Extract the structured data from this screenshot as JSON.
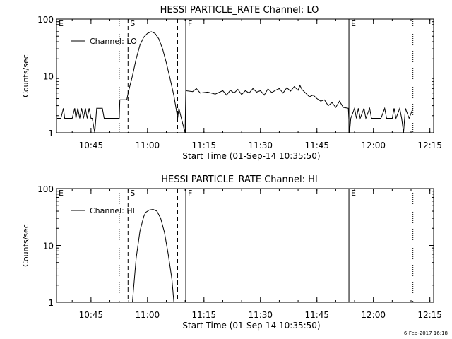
{
  "footer_timestamp": "6-Feb-2017 16:18",
  "chart_data": [
    {
      "type": "line",
      "title": "HESSI PARTICLE_RATE Channel: LO",
      "xlabel": "Start Time (01-Sep-14 10:35:50)",
      "ylabel": "Counts/sec",
      "y_scale": "log",
      "ylim": [
        1,
        100
      ],
      "y_ticks": [
        {
          "value": 1,
          "label": "1"
        },
        {
          "value": 10,
          "label": "10"
        },
        {
          "value": 100,
          "label": "100"
        }
      ],
      "x_ticks": [
        {
          "value": "10:45",
          "label": "10:45"
        },
        {
          "value": "11:00",
          "label": "11:00"
        },
        {
          "value": "11:15",
          "label": "11:15"
        },
        {
          "value": "11:30",
          "label": "11:30"
        },
        {
          "value": "11:45",
          "label": "11:45"
        },
        {
          "value": "12:00",
          "label": "12:00"
        },
        {
          "value": "12:15",
          "label": "12:15"
        }
      ],
      "xlim": [
        "10:35:50",
        "12:16:00"
      ],
      "legend": {
        "placement": "top-left",
        "entries": [
          "Channel: LO"
        ]
      },
      "markers": [
        {
          "time": "10:35:50",
          "style": "dotted",
          "label": "E"
        },
        {
          "time": "10:52:30",
          "style": "dotted",
          "label": ""
        },
        {
          "time": "10:54:50",
          "style": "dashed",
          "label": "S"
        },
        {
          "time": "11:08:00",
          "style": "dashed",
          "label": ""
        },
        {
          "time": "11:10:10",
          "style": "solid",
          "label": "F"
        },
        {
          "time": "11:53:30",
          "style": "solid",
          "label": "E"
        },
        {
          "time": "12:10:30",
          "style": "dotted",
          "label": ""
        }
      ],
      "series": [
        {
          "name": "Channel: LO",
          "points": [
            [
              "10:36:00",
              1.8
            ],
            [
              "10:37:00",
              1.8
            ],
            [
              "10:37:40",
              2.7
            ],
            [
              "10:38:00",
              1.8
            ],
            [
              "10:40:00",
              1.8
            ],
            [
              "10:40:40",
              2.7
            ],
            [
              "10:41:00",
              1.8
            ],
            [
              "10:41:30",
              2.7
            ],
            [
              "10:42:00",
              1.8
            ],
            [
              "10:42:30",
              2.7
            ],
            [
              "10:43:00",
              1.8
            ],
            [
              "10:43:30",
              2.7
            ],
            [
              "10:44:00",
              1.8
            ],
            [
              "10:44:30",
              2.7
            ],
            [
              "10:45:00",
              1.8
            ],
            [
              "10:45:20",
              1.8
            ],
            [
              "10:46:00",
              1.0
            ],
            [
              "10:46:30",
              2.7
            ],
            [
              "10:48:00",
              2.7
            ],
            [
              "10:48:30",
              1.8
            ],
            [
              "10:52:30",
              1.8
            ],
            [
              "10:52:40",
              3.8
            ],
            [
              "10:54:30",
              3.8
            ],
            [
              "10:55:00",
              5.5
            ],
            [
              "10:56:00",
              10
            ],
            [
              "10:57:00",
              20
            ],
            [
              "10:58:00",
              35
            ],
            [
              "10:59:00",
              48
            ],
            [
              "11:00:00",
              56
            ],
            [
              "11:01:00",
              60
            ],
            [
              "11:02:00",
              56
            ],
            [
              "11:03:00",
              45
            ],
            [
              "11:04:00",
              30
            ],
            [
              "11:05:00",
              17
            ],
            [
              "11:06:00",
              9
            ],
            [
              "11:07:00",
              4.5
            ],
            [
              "11:07:40",
              2.5
            ],
            [
              "11:08:00",
              1.8
            ],
            [
              "11:08:20",
              2.7
            ],
            [
              "11:09:00",
              1.8
            ],
            [
              "11:09:40",
              1.2
            ],
            [
              "11:10:00",
              1.0
            ],
            [
              "11:10:10",
              5.5
            ],
            [
              "11:12:00",
              5.3
            ],
            [
              "11:13:00",
              6.0
            ],
            [
              "11:14:00",
              5.0
            ],
            [
              "11:16:00",
              5.2
            ],
            [
              "11:18:00",
              4.8
            ],
            [
              "11:20:00",
              5.5
            ],
            [
              "11:21:00",
              4.6
            ],
            [
              "11:22:00",
              5.6
            ],
            [
              "11:23:00",
              5.0
            ],
            [
              "11:24:00",
              5.8
            ],
            [
              "11:25:00",
              4.7
            ],
            [
              "11:26:00",
              5.5
            ],
            [
              "11:27:00",
              5.0
            ],
            [
              "11:28:00",
              6.0
            ],
            [
              "11:29:00",
              5.2
            ],
            [
              "11:30:00",
              5.5
            ],
            [
              "11:31:00",
              4.6
            ],
            [
              "11:32:00",
              5.9
            ],
            [
              "11:33:00",
              5.1
            ],
            [
              "11:34:00",
              5.6
            ],
            [
              "11:35:00",
              6.0
            ],
            [
              "11:36:00",
              5.0
            ],
            [
              "11:37:00",
              6.2
            ],
            [
              "11:38:00",
              5.4
            ],
            [
              "11:39:00",
              6.5
            ],
            [
              "11:40:00",
              5.6
            ],
            [
              "11:40:30",
              6.8
            ],
            [
              "11:41:00",
              5.8
            ],
            [
              "11:42:00",
              5.0
            ],
            [
              "11:43:00",
              4.3
            ],
            [
              "11:44:00",
              4.6
            ],
            [
              "11:45:00",
              4.0
            ],
            [
              "11:46:00",
              3.6
            ],
            [
              "11:47:00",
              3.8
            ],
            [
              "11:48:00",
              3.0
            ],
            [
              "11:49:00",
              3.4
            ],
            [
              "11:50:00",
              2.8
            ],
            [
              "11:51:00",
              3.6
            ],
            [
              "11:52:00",
              2.8
            ],
            [
              "11:53:20",
              2.7
            ],
            [
              "11:53:40",
              1.0
            ],
            [
              "11:54:00",
              1.8
            ],
            [
              "11:55:00",
              2.7
            ],
            [
              "11:55:30",
              1.8
            ],
            [
              "11:56:00",
              2.7
            ],
            [
              "11:56:30",
              1.8
            ],
            [
              "11:57:30",
              2.7
            ],
            [
              "11:58:00",
              1.8
            ],
            [
              "11:59:00",
              2.7
            ],
            [
              "11:59:30",
              1.8
            ],
            [
              "12:02:00",
              1.8
            ],
            [
              "12:03:00",
              2.7
            ],
            [
              "12:03:30",
              1.8
            ],
            [
              "12:05:00",
              1.8
            ],
            [
              "12:05:30",
              2.7
            ],
            [
              "12:06:00",
              1.8
            ],
            [
              "12:07:00",
              2.7
            ],
            [
              "12:07:30",
              1.8
            ],
            [
              "12:08:00",
              1.0
            ],
            [
              "12:08:30",
              2.7
            ],
            [
              "12:09:30",
              1.8
            ],
            [
              "12:10:30",
              2.7
            ]
          ]
        }
      ]
    },
    {
      "type": "line",
      "title": "HESSI PARTICLE_RATE Channel: HI",
      "xlabel": "Start Time (01-Sep-14 10:35:50)",
      "ylabel": "Counts/sec",
      "y_scale": "log",
      "ylim": [
        1,
        100
      ],
      "y_ticks": [
        {
          "value": 1,
          "label": "1"
        },
        {
          "value": 10,
          "label": "10"
        },
        {
          "value": 100,
          "label": "100"
        }
      ],
      "x_ticks": [
        {
          "value": "10:45",
          "label": "10:45"
        },
        {
          "value": "11:00",
          "label": "11:00"
        },
        {
          "value": "11:15",
          "label": "11:15"
        },
        {
          "value": "11:30",
          "label": "11:30"
        },
        {
          "value": "11:45",
          "label": "11:45"
        },
        {
          "value": "12:00",
          "label": "12:00"
        },
        {
          "value": "12:15",
          "label": "12:15"
        }
      ],
      "xlim": [
        "10:35:50",
        "12:16:00"
      ],
      "legend": {
        "placement": "top-left",
        "entries": [
          "Channel: HI"
        ]
      },
      "markers": [
        {
          "time": "10:35:50",
          "style": "dotted",
          "label": "E"
        },
        {
          "time": "10:52:30",
          "style": "dotted",
          "label": ""
        },
        {
          "time": "10:54:50",
          "style": "dashed",
          "label": "S"
        },
        {
          "time": "11:08:00",
          "style": "dashed",
          "label": ""
        },
        {
          "time": "11:10:10",
          "style": "solid",
          "label": "F"
        },
        {
          "time": "11:53:30",
          "style": "solid",
          "label": "E"
        },
        {
          "time": "12:10:30",
          "style": "dotted",
          "label": ""
        }
      ],
      "series": [
        {
          "name": "Channel: HI",
          "points": [
            [
              "10:56:00",
              1.0
            ],
            [
              "10:56:30",
              2.5
            ],
            [
              "10:57:00",
              6
            ],
            [
              "10:58:00",
              18
            ],
            [
              "10:59:00",
              32
            ],
            [
              "10:59:30",
              38
            ],
            [
              "11:00:30",
              42
            ],
            [
              "11:01:30",
              43
            ],
            [
              "11:02:30",
              40
            ],
            [
              "11:03:30",
              30
            ],
            [
              "11:04:30",
              17
            ],
            [
              "11:05:30",
              7
            ],
            [
              "11:06:30",
              2.5
            ],
            [
              "11:07:00",
              1.0
            ]
          ]
        }
      ]
    }
  ]
}
